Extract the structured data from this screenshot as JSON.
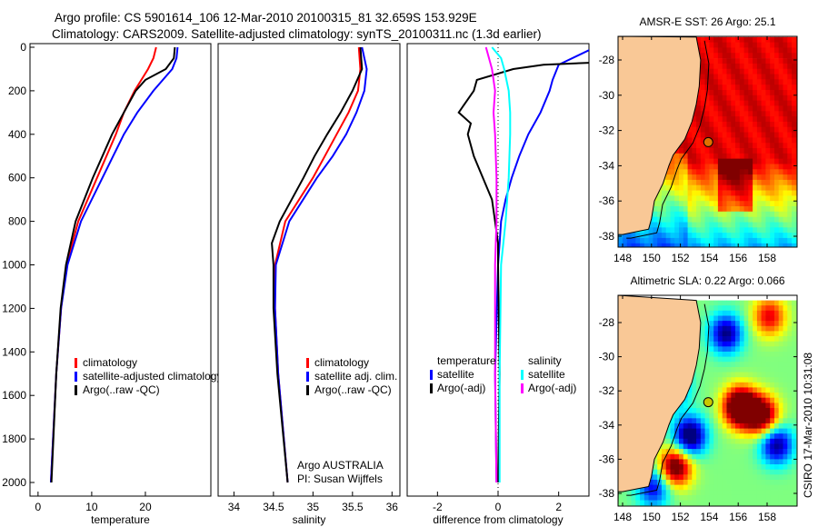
{
  "title_line1": "Argo profile: CS 5901614_106 12-Mar-2010 20100315_81 32.659S 153.929E",
  "title_line2": "Climatology: CARS2009. Satellite-adjusted climatology: synTS_20100311.nc (1.3d earlier)",
  "footer_vertical": "CSIRO 17-Mar-2010 10:31:08",
  "annotation_line1": "Argo AUSTRALIA",
  "annotation_line2": "PI: Susan Wijffels",
  "colors": {
    "climatology": "#ff0000",
    "satellite": "#0000ff",
    "argo": "#000000",
    "sal_sat": "#00ffff",
    "sal_argo": "#ff00ff",
    "land": "#f9c896"
  },
  "chart_data": [
    {
      "type": "line",
      "xlabel": "temperature",
      "xlim": [
        -1.5,
        32.2
      ],
      "ylim": [
        2060,
        0
      ],
      "xticks": [
        0,
        10,
        20
      ],
      "yticks": [
        0,
        200,
        400,
        600,
        800,
        1000,
        1200,
        1400,
        1600,
        1800,
        2000
      ],
      "legend": [
        "climatology",
        "satellite-adjusted climatology",
        "Argo(..raw -QC)"
      ],
      "legend_placement": "lower-right",
      "series": [
        {
          "name": "climatology",
          "color": "#ff0000",
          "depth": [
            0,
            50,
            100,
            200,
            300,
            400,
            600,
            800,
            1000,
            1200,
            1500,
            2000
          ],
          "values": [
            22,
            21.5,
            20.5,
            18,
            16,
            14.5,
            11,
            7.5,
            5.3,
            4.3,
            3.4,
            2.4
          ]
        },
        {
          "name": "satellite-adjusted climatology",
          "color": "#0000ff",
          "depth": [
            0,
            50,
            100,
            200,
            300,
            400,
            600,
            800,
            1000,
            1200,
            1500,
            2000
          ],
          "values": [
            26,
            25.8,
            25,
            21.5,
            18.5,
            16,
            12,
            8,
            5.5,
            4.3,
            3.4,
            2.4
          ]
        },
        {
          "name": "Argo(..raw -QC)",
          "color": "#000000",
          "depth": [
            0,
            50,
            100,
            150,
            200,
            300,
            400,
            500,
            600,
            800,
            1000,
            1200,
            1500,
            2000
          ],
          "values": [
            25.5,
            25.3,
            23.8,
            20,
            18.2,
            16,
            13.8,
            12,
            10.2,
            7,
            5.2,
            4.2,
            3.4,
            2.5
          ]
        }
      ]
    },
    {
      "type": "line",
      "xlabel": "salinity",
      "xlim": [
        33.8,
        36.1
      ],
      "ylim": [
        2060,
        0
      ],
      "xticks": [
        34,
        34.5,
        35,
        35.5,
        36
      ],
      "legend": [
        "climatology",
        "satellite adj. clim.",
        "Argo(..raw -QC)"
      ],
      "legend_placement": "lower-right",
      "series": [
        {
          "name": "climatology",
          "color": "#ff0000",
          "depth": [
            0,
            100,
            200,
            300,
            400,
            500,
            600,
            800,
            1000,
            1200,
            1500,
            2000
          ],
          "values": [
            35.58,
            35.6,
            35.57,
            35.45,
            35.3,
            35.15,
            35.0,
            34.65,
            34.52,
            34.52,
            34.56,
            34.68
          ]
        },
        {
          "name": "satellite adj. clim.",
          "color": "#0000ff",
          "depth": [
            0,
            100,
            200,
            300,
            400,
            500,
            600,
            800,
            1000,
            1200,
            1500,
            2000
          ],
          "values": [
            35.62,
            35.68,
            35.65,
            35.55,
            35.42,
            35.25,
            35.05,
            34.7,
            34.53,
            34.52,
            34.56,
            34.68
          ]
        },
        {
          "name": "Argo(..raw -QC)",
          "color": "#000000",
          "depth": [
            0,
            100,
            200,
            300,
            400,
            500,
            600,
            800,
            900,
            1000,
            1200,
            1500,
            2000
          ],
          "values": [
            35.6,
            35.62,
            35.5,
            35.35,
            35.18,
            35.02,
            34.88,
            34.58,
            34.48,
            34.5,
            34.5,
            34.55,
            34.68
          ]
        }
      ]
    },
    {
      "type": "line",
      "xlabel": "difference from climatology",
      "xlim": [
        -3,
        3
      ],
      "ylim": [
        2060,
        0
      ],
      "xticks": [
        -2,
        0,
        2
      ],
      "legend": [
        "temperature",
        "satellite",
        "Argo(-adj)",
        "salinity",
        "satellite",
        "Argo(-adj)"
      ],
      "legend_placement": "lower-center",
      "series": [
        {
          "name": "temperature satellite",
          "color": "#0000ff",
          "depth": [
            0,
            80,
            150,
            200,
            300,
            400,
            500,
            600,
            700,
            800,
            900,
            1000,
            1500,
            2000
          ],
          "values": [
            3.2,
            2.0,
            1.8,
            1.7,
            1.4,
            1.0,
            0.7,
            0.45,
            0.25,
            0.1,
            0.05,
            0,
            -0.1,
            -0.05
          ]
        },
        {
          "name": "temperature Argo(-adj)",
          "color": "#000000",
          "depth": [
            70,
            80,
            100,
            150,
            200,
            300,
            350,
            400,
            500,
            600,
            700,
            800,
            900,
            1000,
            1500,
            2000
          ],
          "values": [
            3.2,
            1.5,
            0.5,
            -0.7,
            -0.8,
            -1.3,
            -0.9,
            -1.0,
            -0.8,
            -0.5,
            -0.2,
            -0.1,
            0,
            0,
            0.05,
            0
          ]
        },
        {
          "name": "salinity satellite",
          "color": "#00ffff",
          "depth": [
            0,
            50,
            100,
            200,
            300,
            400,
            600,
            800,
            1000,
            1500,
            2000
          ],
          "values": [
            -0.2,
            0.1,
            0.2,
            0.35,
            0.4,
            0.4,
            0.35,
            0.25,
            0.1,
            0.05,
            0.05
          ]
        },
        {
          "name": "salinity Argo(-adj)",
          "color": "#ff00ff",
          "depth": [
            0,
            50,
            100,
            200,
            300,
            400,
            600,
            800,
            1000,
            1500,
            2000
          ],
          "values": [
            -0.4,
            -0.3,
            -0.2,
            -0.1,
            -0.15,
            -0.1,
            -0.05,
            -0.05,
            -0.1,
            -0.1,
            -0.05
          ]
        }
      ]
    }
  ],
  "maps": [
    {
      "title": "AMSR-E SST: 26 Argo: 25.1",
      "kind": "sst",
      "lonlim": [
        147.7,
        160.1
      ],
      "latlim": [
        -38.6,
        -26.7
      ],
      "xticks": [
        148,
        150,
        152,
        154,
        156,
        158
      ],
      "yticks": [
        -28,
        -30,
        -32,
        -34,
        -36,
        -38
      ]
    },
    {
      "title": "Altimetric SLA: 0.22 Argo: 0.066",
      "kind": "sla",
      "lonlim": [
        147.7,
        160.1
      ],
      "latlim": [
        -38.6,
        -26.7
      ],
      "xticks": [
        148,
        150,
        152,
        154,
        156,
        158
      ],
      "yticks": [
        -28,
        -30,
        -32,
        -34,
        -36,
        -38
      ]
    }
  ],
  "argo_position": {
    "lon": 153.929,
    "lat": -32.659
  },
  "coastline": [
    [
      153.1,
      -26.7
    ],
    [
      153.4,
      -28
    ],
    [
      153.3,
      -29.5
    ],
    [
      153.1,
      -30.5
    ],
    [
      152.8,
      -31.5
    ],
    [
      152.3,
      -32.5
    ],
    [
      151.5,
      -33.4
    ],
    [
      151.2,
      -34
    ],
    [
      150.8,
      -35
    ],
    [
      150.2,
      -36
    ],
    [
      150,
      -37
    ],
    [
      149.8,
      -37.6
    ],
    [
      148,
      -37.9
    ],
    [
      147.7,
      -37.9
    ]
  ]
}
